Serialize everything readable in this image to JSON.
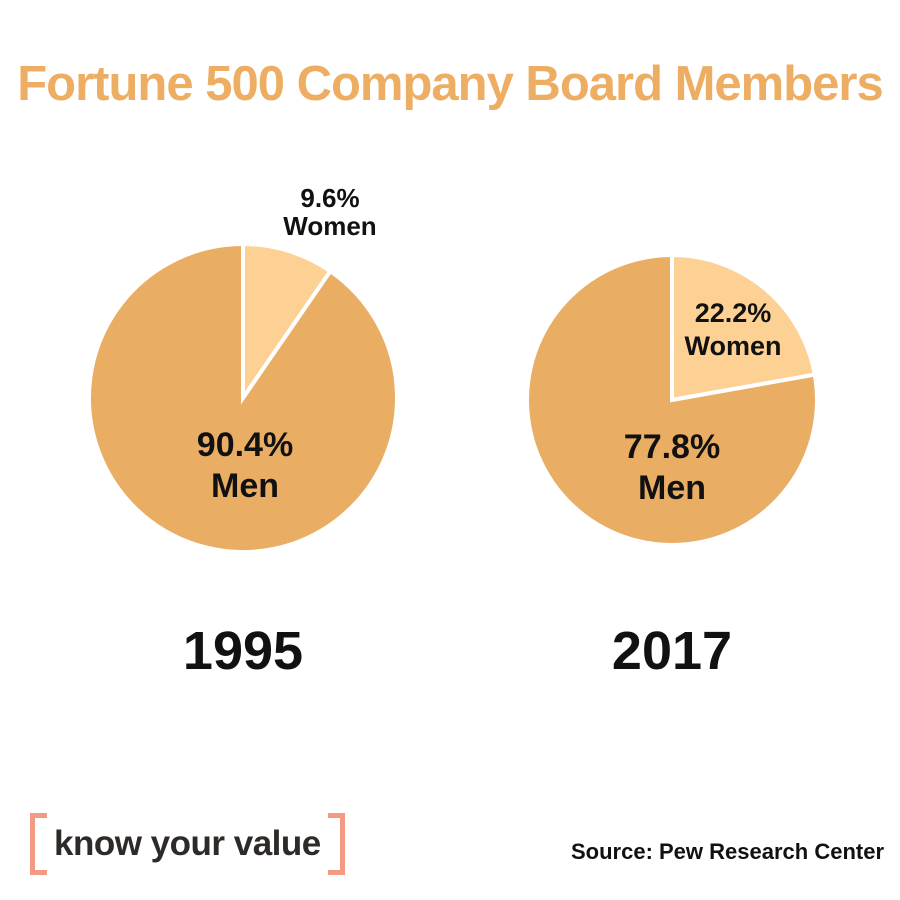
{
  "title": {
    "text": "Fortune 500 Company Board Members"
  },
  "colors": {
    "title": "#EDAE64",
    "men_slice": "#EAAD64",
    "women_slice": "#FDD094",
    "slice_divider": "#FFFFFF",
    "label_text": "#111111",
    "bracket": "#F29B82",
    "logo_text": "#2E2A28",
    "background": "#FFFFFF"
  },
  "chart_data": [
    {
      "type": "pie",
      "year": "1995",
      "start_angle_deg": 0,
      "direction": "clockwise",
      "slices": [
        {
          "label": "Women",
          "value": 9.6,
          "display": "9.6%",
          "color": "#FDD094"
        },
        {
          "label": "Men",
          "value": 90.4,
          "display": "90.4%",
          "color": "#EAAD64"
        }
      ]
    },
    {
      "type": "pie",
      "year": "2017",
      "start_angle_deg": 0,
      "direction": "clockwise",
      "slices": [
        {
          "label": "Women",
          "value": 22.2,
          "display": "22.2%",
          "color": "#FDD094"
        },
        {
          "label": "Men",
          "value": 77.8,
          "display": "77.8%",
          "color": "#EAAD64"
        }
      ]
    }
  ],
  "footer": {
    "logo_text": "know your value",
    "source": "Source: Pew Research Center"
  }
}
